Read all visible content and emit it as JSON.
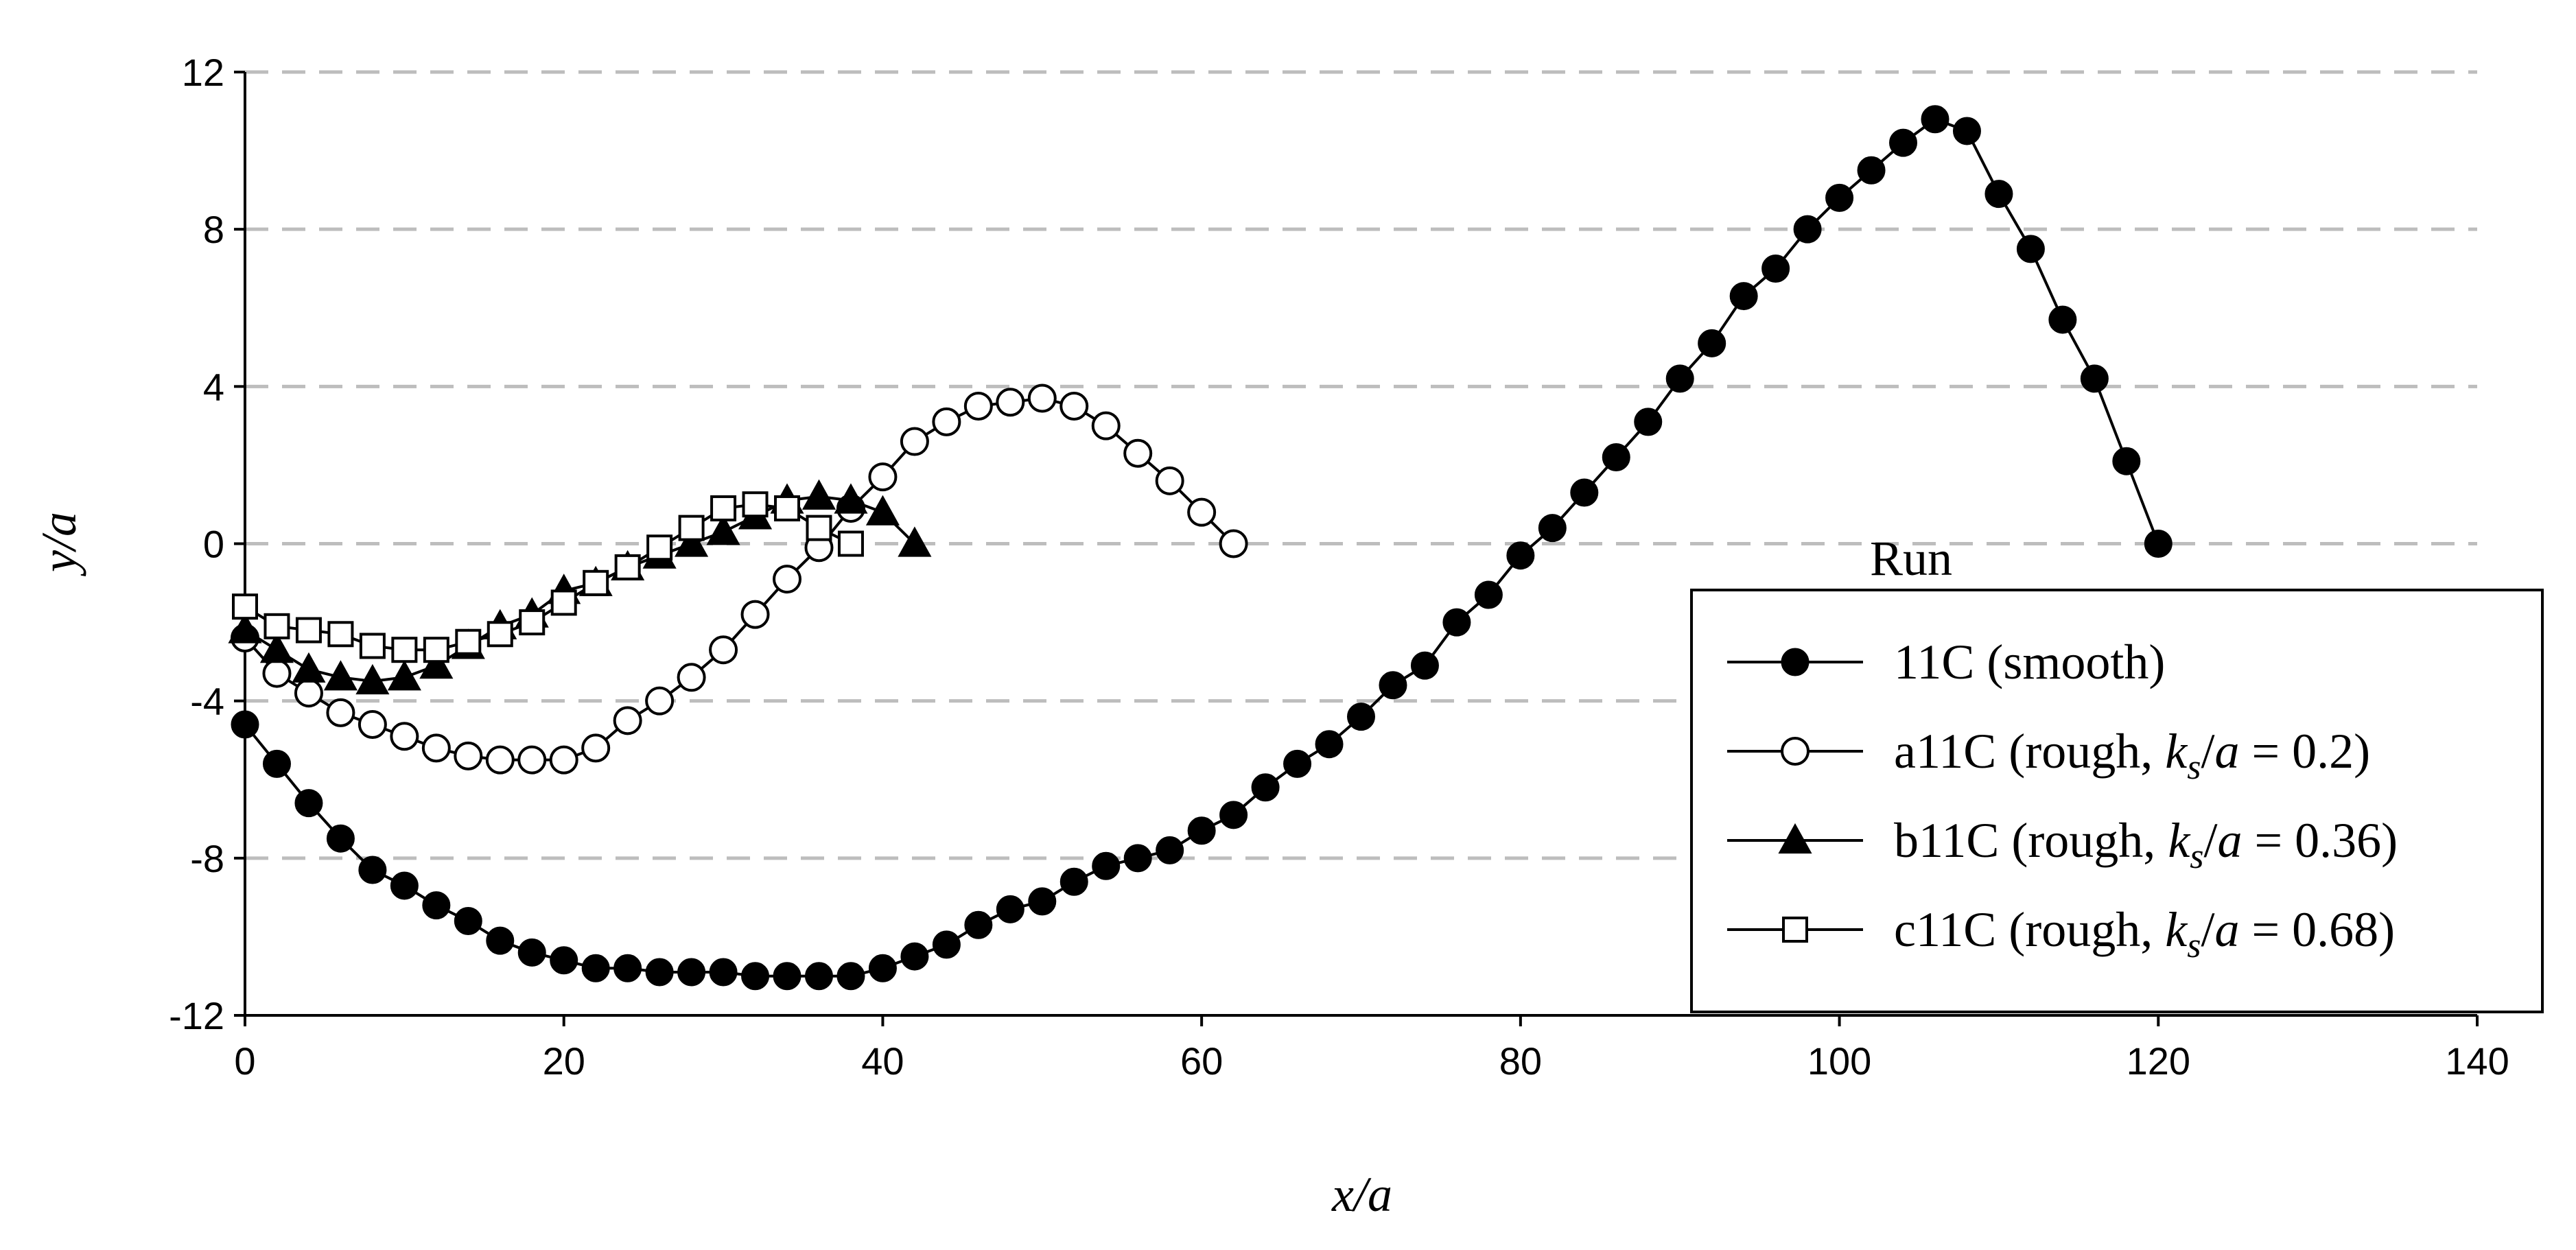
{
  "chart_data": {
    "type": "scatter",
    "xlabel": "x/a",
    "ylabel": "y/a",
    "xlim": [
      0,
      140
    ],
    "ylim": [
      -12,
      12
    ],
    "xticks": [
      "0",
      "20",
      "40",
      "60",
      "80",
      "100",
      "120",
      "140"
    ],
    "yticks": [
      "12",
      "8",
      "4",
      "0",
      "-4",
      "-8",
      "-12"
    ],
    "grid": "horizontal dashed",
    "legend": {
      "title": "Run",
      "placement": "bottom-right",
      "entries": [
        {
          "prefix": "11C (smooth)",
          "ks": "",
          "suffix": ""
        },
        {
          "prefix": "a11C (rough, ",
          "ks": "k",
          "sub": "s",
          "suffix": " = 0.2)"
        },
        {
          "prefix": "b11C (rough, ",
          "ks": "k",
          "sub": "s",
          "suffix": " = 0.36)"
        },
        {
          "prefix": "c11C (rough, ",
          "ks": "k",
          "sub": "s",
          "suffix": " = 0.68)"
        }
      ]
    },
    "series": [
      {
        "name": "11C (smooth)",
        "marker": "filled-circle",
        "x": [
          0,
          2,
          4,
          6,
          8,
          10,
          12,
          14,
          16,
          18,
          20,
          22,
          24,
          26,
          28,
          30,
          32,
          34,
          36,
          38,
          40,
          42,
          44,
          46,
          48,
          50,
          52,
          54,
          56,
          58,
          60,
          62,
          64,
          66,
          68,
          70,
          72,
          74,
          76,
          78,
          80,
          82,
          84,
          86,
          88,
          90,
          92,
          94,
          96,
          98,
          100,
          102,
          104,
          106,
          108,
          110,
          112,
          114,
          116,
          118,
          120
        ],
        "y": [
          -4.6,
          -5.6,
          -6.6,
          -7.5,
          -8.3,
          -8.7,
          -9.2,
          -9.6,
          -10.1,
          -10.4,
          -10.6,
          -10.8,
          -10.8,
          -10.9,
          -10.9,
          -10.9,
          -11.0,
          -11.0,
          -11.0,
          -11.0,
          -10.8,
          -10.5,
          -10.2,
          -9.7,
          -9.3,
          -9.1,
          -8.6,
          -8.2,
          -8.0,
          -7.8,
          -7.3,
          -6.9,
          -6.2,
          -5.6,
          -5.1,
          -4.4,
          -3.6,
          -3.1,
          -2.0,
          -1.3,
          -0.3,
          0.4,
          1.3,
          2.2,
          3.1,
          4.2,
          5.1,
          6.3,
          7.0,
          8.0,
          8.8,
          9.5,
          10.2,
          10.8,
          10.5,
          8.9,
          7.5,
          5.7,
          4.2,
          2.1,
          0.0
        ]
      },
      {
        "name": "a11C (rough, ks/a = 0.2)",
        "marker": "open-circle",
        "x": [
          0,
          2,
          4,
          6,
          8,
          10,
          12,
          14,
          16,
          18,
          20,
          22,
          24,
          26,
          28,
          30,
          32,
          34,
          36,
          38,
          40,
          42,
          44,
          46,
          48,
          50,
          52,
          54,
          56,
          58,
          60,
          62
        ],
        "y": [
          -2.4,
          -3.3,
          -3.8,
          -4.3,
          -4.6,
          -4.9,
          -5.2,
          -5.4,
          -5.5,
          -5.5,
          -5.5,
          -5.2,
          -4.5,
          -4.0,
          -3.4,
          -2.7,
          -1.8,
          -0.9,
          -0.1,
          0.9,
          1.7,
          2.6,
          3.1,
          3.5,
          3.6,
          3.7,
          3.5,
          3.0,
          2.3,
          1.6,
          0.8,
          0.0
        ]
      },
      {
        "name": "b11C (rough, ks/a = 0.36)",
        "marker": "filled-triangle",
        "x": [
          0,
          2,
          4,
          6,
          8,
          10,
          12,
          14,
          16,
          18,
          20,
          22,
          24,
          26,
          28,
          30,
          32,
          34,
          36,
          38,
          40,
          42
        ],
        "y": [
          -2.2,
          -2.7,
          -3.2,
          -3.4,
          -3.5,
          -3.4,
          -3.1,
          -2.6,
          -2.1,
          -1.8,
          -1.2,
          -1.0,
          -0.6,
          -0.3,
          0.0,
          0.3,
          0.7,
          1.1,
          1.2,
          1.1,
          0.8,
          0.0
        ]
      },
      {
        "name": "c11C (rough, ks/a = 0.68)",
        "marker": "open-square",
        "x": [
          0,
          2,
          4,
          6,
          8,
          10,
          12,
          14,
          16,
          18,
          20,
          22,
          24,
          26,
          28,
          30,
          32,
          34,
          36,
          38
        ],
        "y": [
          -1.6,
          -2.1,
          -2.2,
          -2.3,
          -2.6,
          -2.7,
          -2.7,
          -2.5,
          -2.3,
          -2.0,
          -1.5,
          -1.0,
          -0.6,
          -0.1,
          0.4,
          0.9,
          1.0,
          0.9,
          0.4,
          0.0
        ]
      }
    ]
  }
}
